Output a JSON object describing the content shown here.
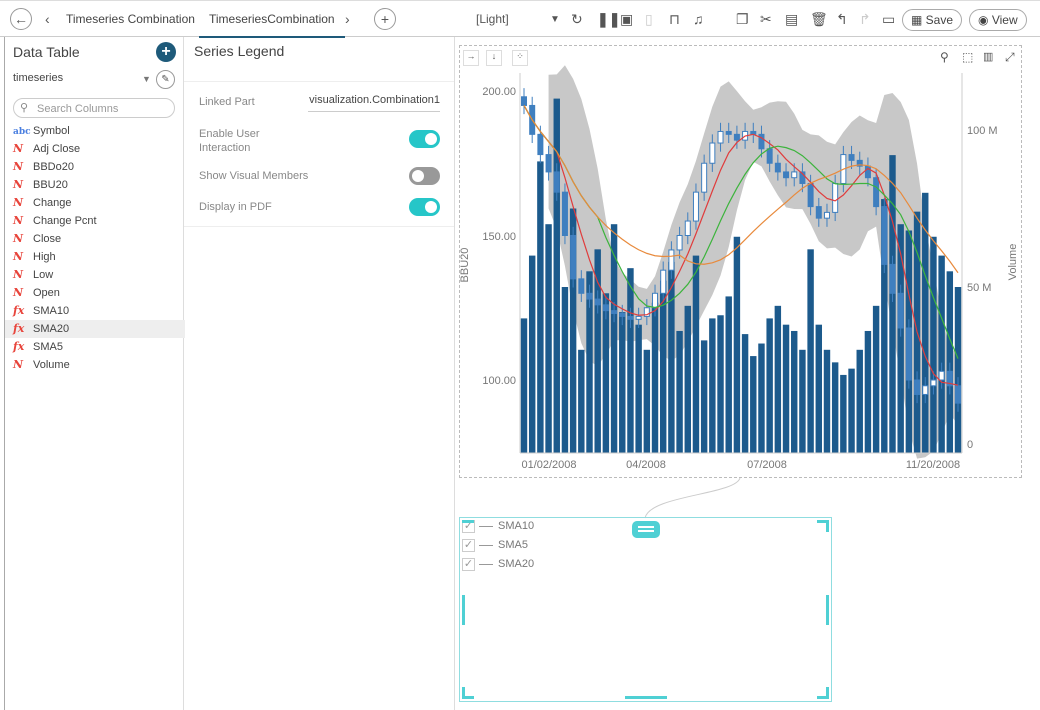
{
  "tabs": {
    "prev": "Timeseries Combination",
    "active": "TimeseriesCombination"
  },
  "theme": "[Light]",
  "toolbar": {
    "save": "Save",
    "view": "View"
  },
  "left": {
    "title": "Data Table",
    "source": "timeseries",
    "search_placeholder": "Search Columns",
    "columns": [
      {
        "label": "Symbol",
        "type": "abc"
      },
      {
        "label": "Adj Close",
        "type": "N"
      },
      {
        "label": "BBDo20",
        "type": "N"
      },
      {
        "label": "BBU20",
        "type": "N"
      },
      {
        "label": "Change",
        "type": "N"
      },
      {
        "label": "Change Pcnt",
        "type": "N"
      },
      {
        "label": "Close",
        "type": "N"
      },
      {
        "label": "High",
        "type": "N"
      },
      {
        "label": "Low",
        "type": "N"
      },
      {
        "label": "Open",
        "type": "N"
      },
      {
        "label": "SMA10",
        "type": "fx"
      },
      {
        "label": "SMA20",
        "type": "fx",
        "selected": true
      },
      {
        "label": "SMA5",
        "type": "fx"
      },
      {
        "label": "Volume",
        "type": "N"
      }
    ]
  },
  "mid": {
    "title": "Series Legend",
    "linked_part_label": "Linked Part",
    "linked_part_value": "visualization.Combination1",
    "enable_label": "Enable User Interaction",
    "enable_on": true,
    "show_members_label": "Show Visual Members",
    "show_members_on": false,
    "pdf_label": "Display in PDF",
    "pdf_on": true
  },
  "legend": {
    "items": [
      {
        "label": "SMA10",
        "checked": true
      },
      {
        "label": "SMA5",
        "checked": true
      },
      {
        "label": "SMA20",
        "checked": true
      }
    ]
  },
  "colors": {
    "accent": "#26c6c8",
    "volume": "#1c5a8c",
    "candle": "#3f7fbf",
    "band": "#c8c8c8",
    "sma5": "#e03c3c",
    "sma10": "#3cb43c",
    "sma20": "#e88a3c"
  },
  "chart_data": {
    "type": "combination",
    "ylabel_left": "BBU20",
    "ylabel_right": "Volume",
    "yticks_left": [
      "200.00",
      "150.00",
      "100.00"
    ],
    "yticks_right": [
      "100 M",
      "50 M",
      "0"
    ],
    "xticks": [
      "01/02/2008",
      "04/2008",
      "07/2008",
      "11/20/2008"
    ],
    "ylim_left": [
      75,
      205
    ],
    "ylim_right": [
      0,
      120000000
    ],
    "close": [
      195,
      185,
      178,
      172,
      165,
      150,
      135,
      130,
      128,
      126,
      124,
      123,
      122,
      121,
      122,
      125,
      130,
      138,
      145,
      150,
      155,
      165,
      175,
      182,
      186,
      185,
      183,
      186,
      185,
      180,
      175,
      172,
      170,
      172,
      168,
      160,
      156,
      158,
      168,
      178,
      176,
      174,
      170,
      160,
      140,
      130,
      118,
      100,
      95,
      98,
      100,
      103,
      98,
      92
    ],
    "volume_m": [
      40,
      60,
      90,
      70,
      110,
      50,
      75,
      30,
      55,
      62,
      48,
      70,
      42,
      56,
      38,
      30,
      45,
      52,
      58,
      36,
      44,
      60,
      33,
      40,
      41,
      47,
      66,
      35,
      28,
      32,
      40,
      44,
      38,
      36,
      30,
      62,
      38,
      30,
      26,
      22,
      24,
      30,
      36,
      44,
      78,
      92,
      70,
      68,
      74,
      80,
      66,
      60,
      55,
      50
    ]
  }
}
